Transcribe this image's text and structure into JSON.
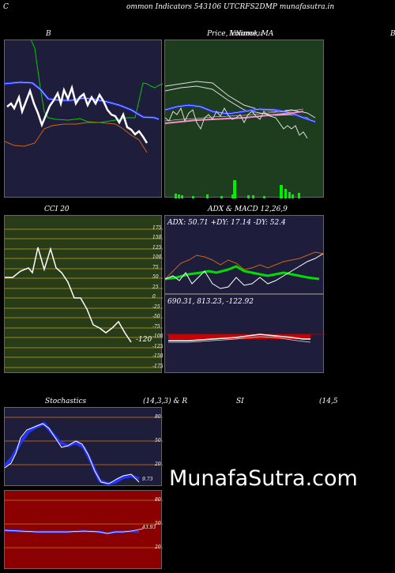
{
  "header": {
    "left_letter": "C",
    "title": "ommon  Indicators 543106  UTCRFS2DMP munafasutra.in"
  },
  "panels": {
    "bb": {
      "title": "B"
    },
    "price": {
      "title": "Price,  Volume,  MA",
      "overlay": "Ichimoku"
    },
    "right_edge_letter": "B",
    "cci": {
      "title": "CCI 20",
      "ticks": [
        "175",
        "150",
        "125",
        "100",
        "75",
        "50",
        "25",
        "0",
        "-25",
        "-50",
        "-75",
        "-100",
        "-125",
        "-150",
        "-175"
      ],
      "current": "-120"
    },
    "adx": {
      "title": "ADX  & MACD 12,26,9",
      "values": "ADX: 50.71  +DY: 17.14  -DY: 52.4"
    },
    "macd": {
      "values": "690.31,  813.23,  -122.92"
    },
    "stoch": {
      "title": "Stochastics",
      "params": "(14,3,3) & R",
      "ticks": [
        "80",
        "50",
        "20"
      ],
      "current": "9.73"
    },
    "rsi": {
      "title": "SI",
      "params": "(14,5",
      "ticks": [
        "80",
        "50",
        "20"
      ],
      "current": "43.93"
    }
  },
  "watermark": "MunafaSutra.com",
  "colors": {
    "panel_navy": "#1e1e3c",
    "panel_green": "#1e3c1e",
    "panel_olive": "#283c18",
    "panel_red": "#8b0000",
    "band_blue": "#2222ff",
    "band_green": "#00cc00",
    "line_orange": "#cc6611"
  }
}
